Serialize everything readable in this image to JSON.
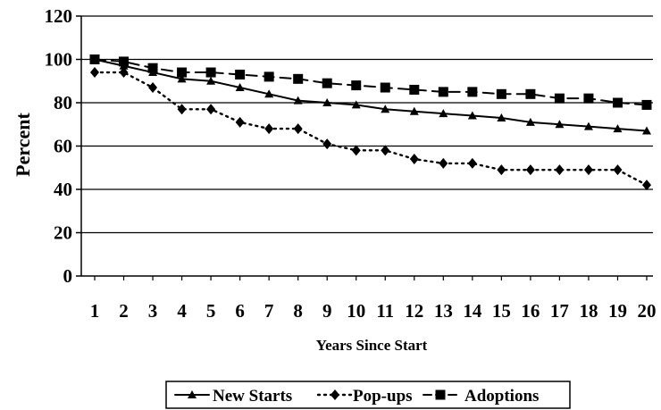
{
  "chart_data": {
    "type": "line",
    "title": "",
    "xlabel": "Years Since Start",
    "ylabel": "Percent",
    "x": [
      1,
      2,
      3,
      4,
      5,
      6,
      7,
      8,
      9,
      10,
      11,
      12,
      13,
      14,
      15,
      16,
      17,
      18,
      19,
      20
    ],
    "xlim": [
      1,
      20
    ],
    "ylim": [
      0,
      120
    ],
    "yticks": [
      0,
      20,
      40,
      60,
      80,
      100,
      120
    ],
    "grid": "horizontal",
    "legend_position": "bottom",
    "series": [
      {
        "name": "New Starts",
        "marker": "triangle",
        "line_style": "solid",
        "color": "#000000",
        "values": [
          100,
          97,
          94,
          91,
          90,
          87,
          84,
          81,
          80,
          79,
          77,
          76,
          75,
          74,
          73,
          71,
          70,
          69,
          68,
          67
        ]
      },
      {
        "name": "Pop-ups",
        "marker": "diamond",
        "line_style": "dotted",
        "color": "#000000",
        "values": [
          94,
          94,
          87,
          77,
          77,
          71,
          68,
          68,
          61,
          58,
          58,
          54,
          52,
          52,
          49,
          49,
          49,
          49,
          49,
          42
        ]
      },
      {
        "name": "Adoptions",
        "marker": "square",
        "line_style": "dashed",
        "color": "#000000",
        "values": [
          100,
          99,
          96,
          94,
          94,
          93,
          92,
          91,
          89,
          88,
          87,
          86,
          85,
          85,
          84,
          84,
          82,
          82,
          80,
          79
        ]
      }
    ]
  }
}
